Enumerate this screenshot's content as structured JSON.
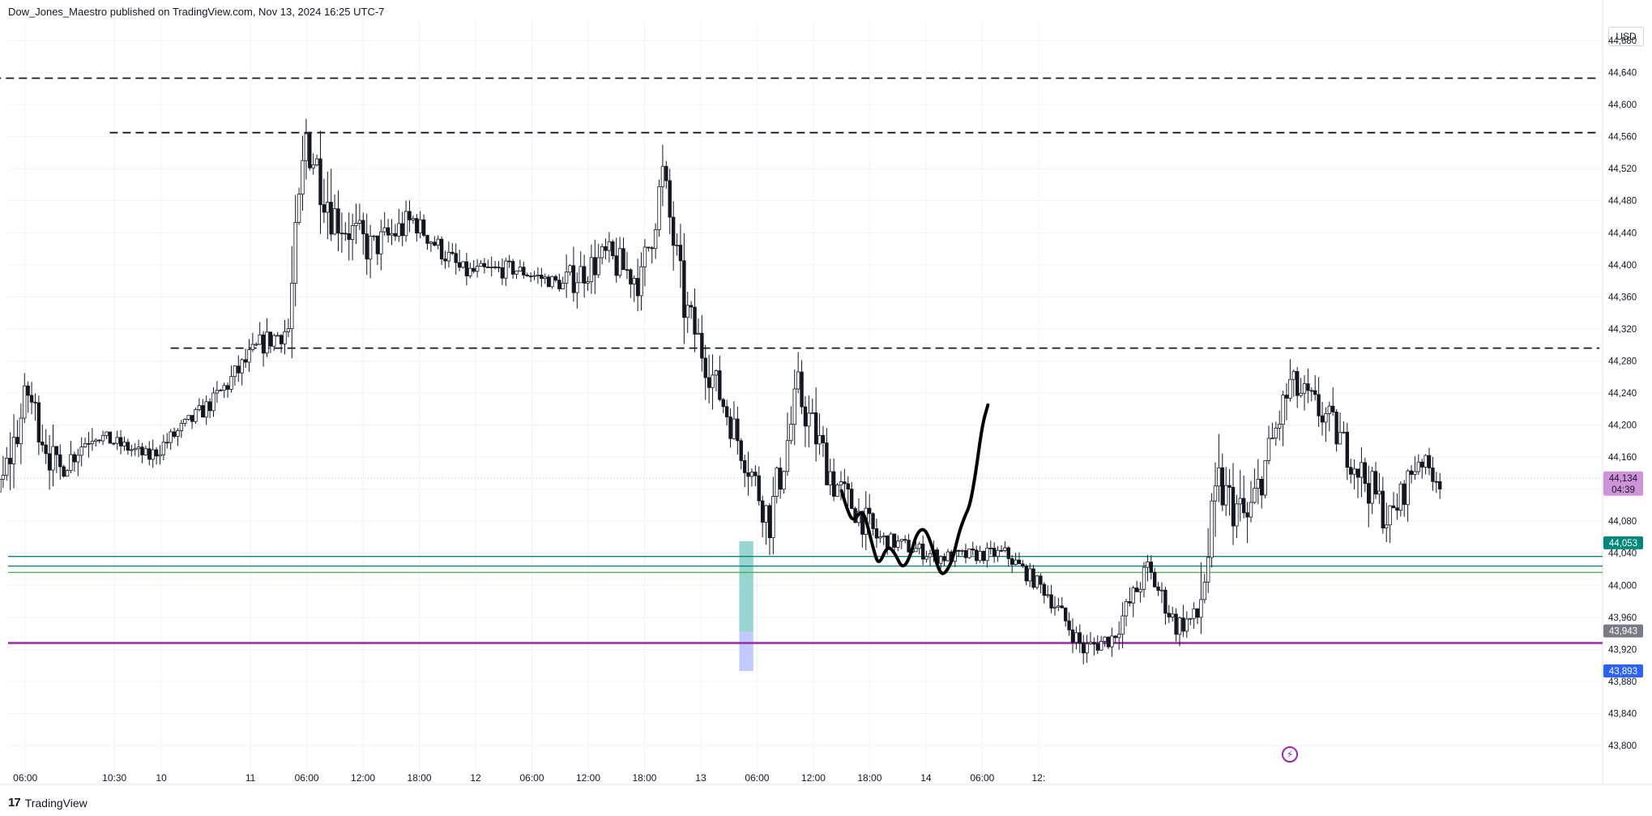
{
  "header": {
    "text": "Dow_Jones_Maestro published on TradingView.com, Nov 13, 2024 16:25 UTC-7"
  },
  "footer": {
    "logo_glyph": "17",
    "brand": "TradingView"
  },
  "currency": "USD",
  "icons": {
    "flash": "lightning-icon"
  },
  "colors": {
    "candle": "#131722",
    "grid": "#f0f3fa",
    "dashed": "#131722",
    "teal": "#26a69a",
    "teal_line": "#00897b",
    "green": "#4caf50",
    "purple": "#9c27b0",
    "box_teal": "#80cbc4",
    "box_blue": "#8c9eff",
    "price_badge": "#ce93d8",
    "label_teal": "#00897b",
    "label_gray": "#787b86",
    "label_blue": "#2962ff"
  },
  "chart_data": {
    "type": "candlestick",
    "y_axis": {
      "min": 43800,
      "max": 44680,
      "ticks": [
        44680,
        44640,
        44600,
        44560,
        44520,
        44480,
        44440,
        44400,
        44360,
        44320,
        44280,
        44240,
        44200,
        44160,
        44120,
        44080,
        44040,
        44000,
        43960,
        43920,
        43880,
        43840,
        43800
      ],
      "tick_labels": [
        "44,680",
        "44,640",
        "44,600",
        "44,560",
        "44,520",
        "44,480",
        "44,440",
        "44,400",
        "44,360",
        "44,320",
        "44,280",
        "44,240",
        "44,200",
        "44,160",
        "44,120",
        "44,080",
        "44,040",
        "44,000",
        "43,960",
        "43,920",
        "43,880",
        "43,840",
        "43,800"
      ]
    },
    "x_axis": {
      "labels": [
        "06:00",
        "10:30",
        "10",
        "11",
        "06:00",
        "12:00",
        "18:00",
        "12",
        "06:00",
        "12:00",
        "18:00",
        "13",
        "06:00",
        "12:00",
        "18:00",
        "14",
        "06:00",
        "12:"
      ],
      "label_index": [
        -4.5,
        5,
        10,
        19.5,
        25.5,
        31.5,
        37.5,
        43.5,
        49.5,
        55.5,
        61.5,
        67.5,
        73.5,
        79.5,
        85.5,
        91.5,
        97.5,
        103.5
      ]
    },
    "current_price": 44134,
    "current_price_label": "44,134",
    "countdown": "04:39",
    "horizontal_levels": [
      {
        "kind": "dashed",
        "price": 44633,
        "from_index": -19
      },
      {
        "kind": "dashed",
        "price": 44565,
        "from_index": 4.5
      },
      {
        "kind": "dashed",
        "price": 44296,
        "from_index": 11
      },
      {
        "kind": "teal",
        "price": 44036
      },
      {
        "kind": "teal",
        "price": 44024
      },
      {
        "kind": "green",
        "price": 44016
      },
      {
        "kind": "purple",
        "price": 43928
      }
    ],
    "axis_labels": [
      {
        "price": 44053,
        "text": "44,053",
        "style": "teal"
      },
      {
        "price": 43943,
        "text": "43,943",
        "style": "gray"
      },
      {
        "price": 43893,
        "text": "43,893",
        "style": "blue"
      }
    ],
    "zone": {
      "from_index": 71.6,
      "to_index": 73.1,
      "upper_top": 44055,
      "upper_bottom": 43942,
      "lower_bottom": 43893
    },
    "projection": [
      [
        82.5,
        44118
      ],
      [
        83.2,
        44090
      ],
      [
        83.8,
        44080
      ],
      [
        84.5,
        44092
      ],
      [
        85.0,
        44088
      ],
      [
        86.0,
        44040
      ],
      [
        86.5,
        44025
      ],
      [
        87.4,
        44050
      ],
      [
        88.2,
        44040
      ],
      [
        89.0,
        44020
      ],
      [
        89.8,
        44035
      ],
      [
        90.5,
        44065
      ],
      [
        91.3,
        44072
      ],
      [
        92.0,
        44055
      ],
      [
        92.8,
        44020
      ],
      [
        93.4,
        44012
      ],
      [
        94.3,
        44030
      ],
      [
        95.0,
        44065
      ],
      [
        95.6,
        44085
      ],
      [
        96.2,
        44100
      ],
      [
        96.8,
        44140
      ],
      [
        97.5,
        44200
      ],
      [
        98.1,
        44225
      ]
    ],
    "candles": {
      "start_index": -27,
      "step": 0.38,
      "segments": [
        {
          "n": 12,
          "from": 43912,
          "to": 43870,
          "range": 22
        },
        {
          "n": 12,
          "from": 43870,
          "to": 43925,
          "range": 25
        },
        {
          "n": 9,
          "from": 43925,
          "to": 44040,
          "range": 35
        },
        {
          "n": 10,
          "from": 44040,
          "to": 44175,
          "range": 45
        },
        {
          "n": 10,
          "from": 44175,
          "to": 44115,
          "range": 45
        },
        {
          "n": 8,
          "from": 44115,
          "to": 44240,
          "range": 55
        },
        {
          "n": 8,
          "from": 44240,
          "to": 44140,
          "range": 50
        },
        {
          "n": 10,
          "from": 44140,
          "to": 44190,
          "range": 30
        },
        {
          "n": 16,
          "from": 44190,
          "to": 44160,
          "range": 18
        },
        {
          "n": 18,
          "from": 44160,
          "to": 44230,
          "range": 22
        },
        {
          "n": 13,
          "from": 44230,
          "to": 44300,
          "range": 28
        },
        {
          "n": 8,
          "from": 44300,
          "to": 44320,
          "range": 30
        },
        {
          "n": 5,
          "from": 44320,
          "to": 44560,
          "range": 80
        },
        {
          "n": 8,
          "from": 44560,
          "to": 44460,
          "range": 70
        },
        {
          "n": 10,
          "from": 44460,
          "to": 44420,
          "range": 50
        },
        {
          "n": 12,
          "from": 44420,
          "to": 44455,
          "range": 40
        },
        {
          "n": 14,
          "from": 44455,
          "to": 44390,
          "range": 28
        },
        {
          "n": 14,
          "from": 44390,
          "to": 44395,
          "range": 22
        },
        {
          "n": 14,
          "from": 44395,
          "to": 44375,
          "range": 18
        },
        {
          "n": 12,
          "from": 44375,
          "to": 44410,
          "range": 40
        },
        {
          "n": 10,
          "from": 44410,
          "to": 44380,
          "range": 45
        },
        {
          "n": 6,
          "from": 44380,
          "to": 44510,
          "range": 60
        },
        {
          "n": 6,
          "from": 44510,
          "to": 44350,
          "range": 60
        },
        {
          "n": 8,
          "from": 44350,
          "to": 44260,
          "range": 50
        },
        {
          "n": 10,
          "from": 44260,
          "to": 44150,
          "range": 45
        },
        {
          "n": 6,
          "from": 44150,
          "to": 44080,
          "range": 50
        },
        {
          "n": 8,
          "from": 44080,
          "to": 44240,
          "range": 60
        },
        {
          "n": 10,
          "from": 44240,
          "to": 44130,
          "range": 55
        },
        {
          "n": 12,
          "from": 44130,
          "to": 44060,
          "range": 40
        },
        {
          "n": 18,
          "from": 44060,
          "to": 44035,
          "range": 20
        },
        {
          "n": 18,
          "from": 44035,
          "to": 44040,
          "range": 18
        },
        {
          "n": 12,
          "from": 44040,
          "to": 43990,
          "range": 20
        },
        {
          "n": 10,
          "from": 43990,
          "to": 43920,
          "range": 25
        },
        {
          "n": 8,
          "from": 43920,
          "to": 43935,
          "range": 25
        },
        {
          "n": 10,
          "from": 43935,
          "to": 44020,
          "range": 30
        },
        {
          "n": 8,
          "from": 44020,
          "to": 43950,
          "range": 30
        },
        {
          "n": 6,
          "from": 43950,
          "to": 43960,
          "range": 30
        },
        {
          "n": 6,
          "from": 43960,
          "to": 44120,
          "range": 80
        },
        {
          "n": 8,
          "from": 44120,
          "to": 44080,
          "range": 60
        },
        {
          "n": 12,
          "from": 44080,
          "to": 44250,
          "range": 50
        },
        {
          "n": 10,
          "from": 44250,
          "to": 44210,
          "range": 45
        },
        {
          "n": 10,
          "from": 44210,
          "to": 44140,
          "range": 45
        },
        {
          "n": 8,
          "from": 44140,
          "to": 44080,
          "range": 50
        },
        {
          "n": 8,
          "from": 44080,
          "to": 44160,
          "range": 40
        },
        {
          "n": 6,
          "from": 44160,
          "to": 44130,
          "range": 25
        }
      ]
    }
  }
}
